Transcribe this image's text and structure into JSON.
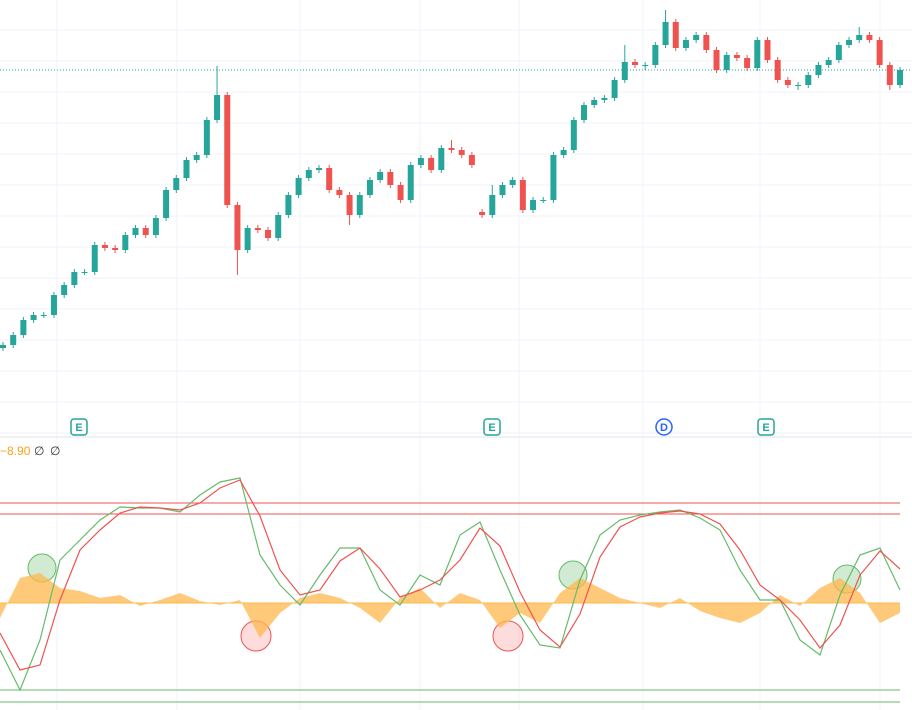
{
  "chart_data": [
    {
      "type": "candlestick",
      "open": [
        92,
        95,
        105,
        120,
        125,
        125,
        145,
        155,
        168,
        168,
        195,
        192,
        190,
        205,
        212,
        205,
        222,
        250,
        262,
        280,
        285,
        320,
        345,
        235,
        190,
        212,
        210,
        202,
        225,
        245,
        262,
        270,
        272,
        250,
        245,
        225,
        245,
        260,
        268,
        255,
        240,
        275,
        282,
        270,
        292,
        290,
        285,
        228,
        225,
        245,
        255,
        260,
        230,
        240,
        240,
        285,
        290,
        320,
        335,
        340,
        342,
        360,
        378,
        375,
        375,
        395,
        418,
        392,
        400,
        405,
        390,
        370,
        385,
        382,
        372,
        400,
        380,
        360,
        355,
        355,
        365,
        375,
        380,
        395,
        400,
        405,
        400,
        375,
        355
      ],
      "high": [
        98,
        108,
        123,
        128,
        128,
        148,
        158,
        171,
        171,
        198,
        198,
        195,
        208,
        215,
        215,
        225,
        253,
        265,
        283,
        288,
        323,
        374,
        348,
        238,
        215,
        215,
        213,
        228,
        248,
        265,
        273,
        275,
        275,
        253,
        248,
        248,
        263,
        271,
        271,
        258,
        278,
        285,
        285,
        295,
        300,
        293,
        288,
        231,
        255,
        258,
        263,
        263,
        243,
        243,
        288,
        293,
        323,
        338,
        343,
        345,
        363,
        395,
        381,
        378,
        398,
        430,
        421,
        403,
        408,
        408,
        393,
        388,
        388,
        385,
        403,
        403,
        383,
        363,
        358,
        368,
        378,
        383,
        398,
        403,
        413,
        408,
        403,
        378,
        373
      ],
      "low": [
        89,
        92,
        102,
        117,
        122,
        122,
        142,
        152,
        165,
        165,
        189,
        187,
        187,
        202,
        202,
        202,
        219,
        247,
        259,
        277,
        282,
        317,
        232,
        165,
        187,
        207,
        199,
        199,
        222,
        242,
        259,
        267,
        247,
        242,
        215,
        222,
        242,
        257,
        252,
        237,
        237,
        272,
        267,
        267,
        287,
        282,
        272,
        222,
        222,
        242,
        252,
        227,
        227,
        237,
        237,
        282,
        287,
        317,
        332,
        337,
        339,
        357,
        372,
        370,
        372,
        392,
        389,
        389,
        397,
        387,
        367,
        367,
        379,
        369,
        369,
        377,
        357,
        352,
        350,
        352,
        362,
        372,
        377,
        392,
        397,
        397,
        372,
        350,
        352
      ],
      "close": [
        95,
        105,
        120,
        125,
        125,
        145,
        155,
        168,
        168,
        195,
        192,
        190,
        205,
        212,
        205,
        222,
        250,
        262,
        280,
        285,
        320,
        345,
        235,
        190,
        212,
        210,
        202,
        225,
        245,
        262,
        270,
        272,
        250,
        245,
        225,
        245,
        260,
        268,
        255,
        240,
        275,
        282,
        270,
        292,
        290,
        285,
        275,
        225,
        245,
        255,
        260,
        230,
        240,
        240,
        285,
        290,
        320,
        335,
        340,
        342,
        360,
        378,
        375,
        375,
        395,
        418,
        392,
        400,
        405,
        390,
        370,
        385,
        382,
        372,
        400,
        380,
        360,
        355,
        355,
        365,
        375,
        380,
        395,
        400,
        405,
        400,
        375,
        355,
        370
      ],
      "ylim": [
        0,
        440
      ],
      "up_color": "#26a69a",
      "down_color": "#ef5350",
      "price_line": 370
    },
    {
      "type": "oscillator",
      "legend_value": "−8.90",
      "legend_marks": [
        "∅",
        "∅"
      ],
      "series": [
        {
          "color": "#66bb6a",
          "values": [
            -47,
            -87,
            -37,
            43,
            63,
            83,
            96,
            95,
            95,
            91,
            108,
            121,
            125,
            48,
            18,
            -2,
            28,
            55,
            55,
            13,
            -2,
            28,
            18,
            68,
            81,
            33,
            -12,
            -42,
            -45,
            23,
            68,
            83,
            88,
            91,
            93,
            85,
            73,
            33,
            3,
            3,
            -37,
            -52,
            8,
            48,
            55,
            13
          ]
        },
        {
          "color": "#ef5350",
          "values": [
            -30,
            -67,
            -62,
            3,
            53,
            73,
            90,
            96,
            95,
            93,
            100,
            115,
            123,
            87,
            33,
            8,
            13,
            42,
            55,
            34,
            6,
            13,
            23,
            43,
            75,
            57,
            11,
            -27,
            -44,
            -11,
            46,
            76,
            86,
            90,
            92,
            89,
            79,
            53,
            18,
            3,
            -17,
            -45,
            -22,
            28,
            52,
            34
          ]
        }
      ],
      "histogram": {
        "color": "#ffb74d",
        "values": [
          -15,
          25,
          30,
          15,
          12,
          5,
          8,
          -3,
          3,
          10,
          2,
          -2,
          3,
          -35,
          -10,
          5,
          10,
          5,
          -5,
          -20,
          5,
          15,
          -5,
          10,
          3,
          -25,
          -10,
          -20,
          10,
          25,
          15,
          5,
          0,
          -5,
          5,
          -8,
          -15,
          -20,
          -10,
          8,
          -3,
          15,
          25,
          10,
          -20,
          -10
        ]
      },
      "levels": [
        100,
        89,
        -87,
        -99
      ],
      "level_colors": [
        "#ef5350",
        "#ef5350",
        "#66bb6a",
        "#66bb6a"
      ],
      "ylim": [
        -107,
        163
      ]
    }
  ],
  "events": [
    "E",
    "E",
    "D",
    "E"
  ]
}
